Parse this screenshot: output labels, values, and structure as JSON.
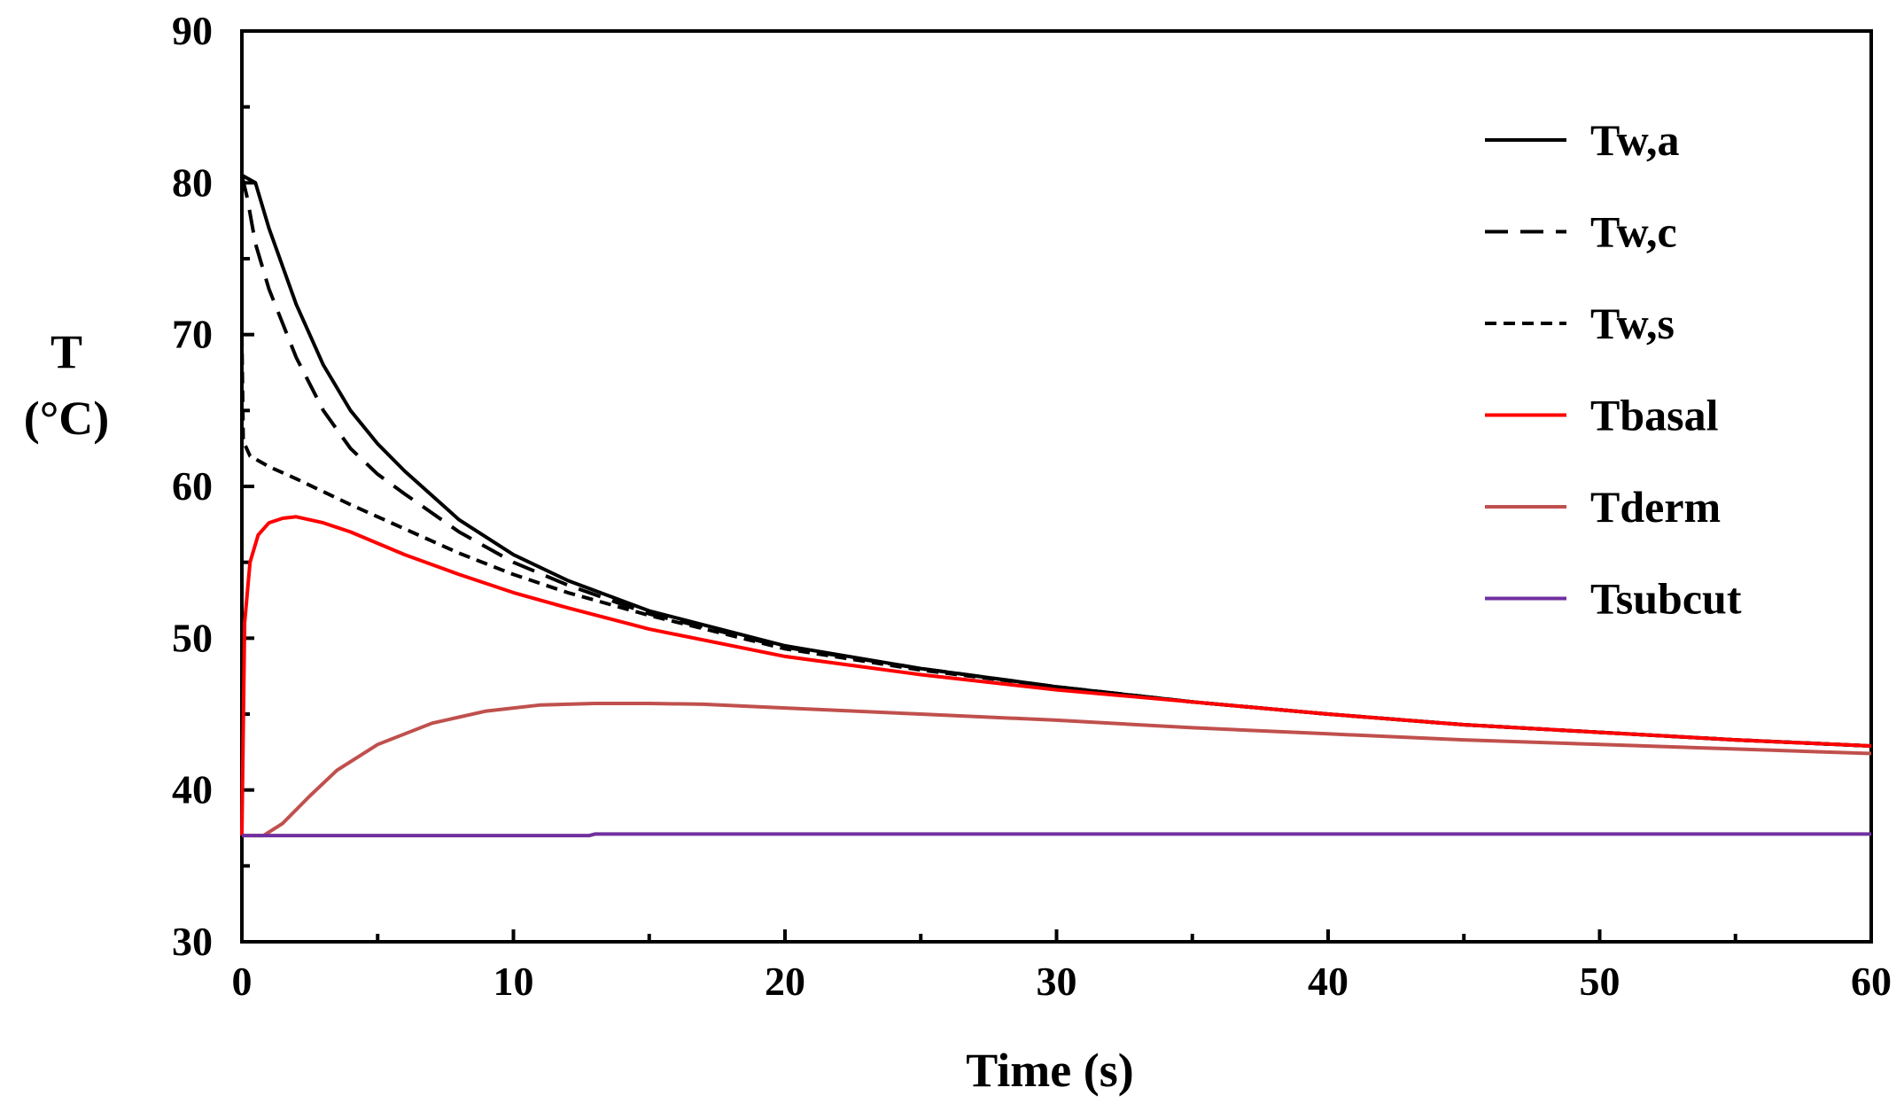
{
  "chart_data": {
    "type": "line",
    "title": "",
    "xlabel": "Time (s)",
    "ylabel_lines": [
      "T",
      "(°C)"
    ],
    "xlim": [
      0,
      60
    ],
    "ylim": [
      30,
      90
    ],
    "xticks": [
      0,
      10,
      20,
      30,
      40,
      50,
      60
    ],
    "xtick_labels": [
      "0",
      "10",
      "20",
      "30",
      "40",
      "50",
      "60"
    ],
    "yticks": [
      30,
      40,
      50,
      60,
      70,
      80,
      90
    ],
    "ytick_labels": [
      "30",
      "40",
      "50",
      "60",
      "70",
      "80",
      "90"
    ],
    "grid": false,
    "legend_position": "top-right",
    "series": [
      {
        "name": "Tw,a",
        "color": "#000000",
        "dash": "solid",
        "x": [
          0,
          0.5,
          1,
          2,
          3,
          4,
          5,
          6,
          8,
          10,
          12,
          15,
          20,
          25,
          30,
          35,
          40,
          45,
          50,
          55,
          60
        ],
        "y": [
          80.5,
          80,
          77,
          72,
          68,
          65,
          62.8,
          61,
          57.8,
          55.5,
          53.8,
          51.8,
          49.5,
          48,
          46.8,
          45.8,
          45,
          44.3,
          43.8,
          43.3,
          42.9
        ]
      },
      {
        "name": "Tw,c",
        "color": "#000000",
        "dash": "long-dash",
        "x": [
          0,
          0.2,
          0.5,
          1,
          2,
          3,
          4,
          5,
          6,
          8,
          10,
          12,
          15,
          20,
          25,
          30,
          35,
          40,
          45,
          50,
          55,
          60
        ],
        "y": [
          80.5,
          79,
          76,
          73,
          68.5,
          65,
          62.5,
          60.8,
          59.5,
          57,
          55,
          53.5,
          51.6,
          49.4,
          48,
          46.8,
          45.8,
          45,
          44.3,
          43.8,
          43.3,
          42.9
        ]
      },
      {
        "name": "Tw,s",
        "color": "#000000",
        "dash": "short-dash",
        "x": [
          0,
          0.05,
          0.3,
          1,
          2,
          4,
          6,
          8,
          10,
          12,
          15,
          20,
          25,
          30,
          35,
          40,
          45,
          50,
          55,
          60
        ],
        "y": [
          70,
          63,
          62,
          61.3,
          60.5,
          58.8,
          57.2,
          55.6,
          54.2,
          53,
          51.5,
          49.3,
          47.9,
          46.8,
          45.8,
          45,
          44.3,
          43.8,
          43.3,
          42.9
        ]
      },
      {
        "name": "Tbasal",
        "color": "#ff0000",
        "dash": "solid",
        "x": [
          0,
          0.1,
          0.3,
          0.6,
          1,
          1.5,
          2,
          3,
          4,
          6,
          8,
          10,
          12,
          15,
          20,
          25,
          30,
          35,
          40,
          45,
          50,
          55,
          60
        ],
        "y": [
          37,
          51,
          55,
          56.8,
          57.6,
          57.9,
          58,
          57.6,
          57,
          55.5,
          54.2,
          53,
          52,
          50.6,
          48.8,
          47.6,
          46.6,
          45.8,
          45,
          44.3,
          43.8,
          43.3,
          42.9
        ]
      },
      {
        "name": "Tderm",
        "color": "#c0504d",
        "dash": "solid",
        "x": [
          0,
          0.8,
          1.5,
          2.5,
          3.5,
          5,
          7,
          9,
          11,
          13,
          15,
          17,
          20,
          25,
          30,
          35,
          40,
          45,
          50,
          55,
          60
        ],
        "y": [
          37,
          37,
          37.8,
          39.6,
          41.3,
          43,
          44.4,
          45.2,
          45.6,
          45.7,
          45.7,
          45.65,
          45.4,
          45,
          44.6,
          44.1,
          43.7,
          43.3,
          43,
          42.7,
          42.4
        ]
      },
      {
        "name": "Tsubcut",
        "color": "#7030a0",
        "dash": "solid",
        "x": [
          0,
          12.8,
          13,
          60
        ],
        "y": [
          37,
          37,
          37.1,
          37.1
        ]
      }
    ]
  }
}
